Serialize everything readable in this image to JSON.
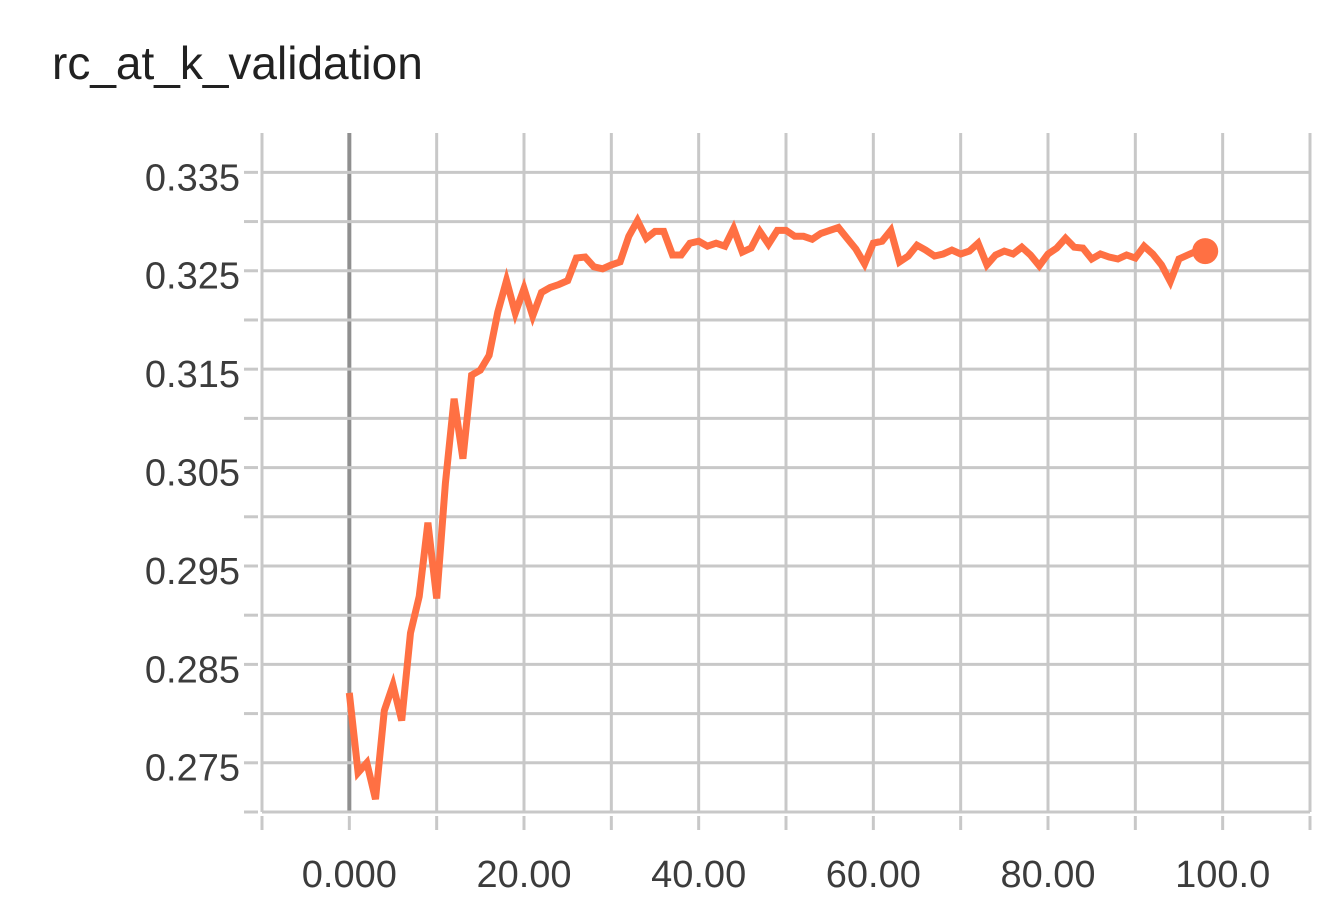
{
  "chart_data": {
    "type": "line",
    "title": "rc_at_k_validation",
    "xlabel": "",
    "ylabel": "",
    "xlim": [
      -10,
      110
    ],
    "ylim": [
      0.2705,
      0.3395
    ],
    "grid": true,
    "x_ticks": [
      0,
      20,
      40,
      60,
      80,
      100
    ],
    "x_tick_labels": [
      "0.000",
      "20.00",
      "40.00",
      "60.00",
      "80.00",
      "100.0"
    ],
    "y_ticks": [
      0.275,
      0.285,
      0.295,
      0.305,
      0.315,
      0.325,
      0.335
    ],
    "y_tick_labels": [
      "0.275",
      "0.285",
      "0.295",
      "0.305",
      "0.315",
      "0.325",
      "0.335"
    ],
    "colors": {
      "series": "#ff7043",
      "grid": "#c8c8c8",
      "axis": "#999999"
    },
    "series": [
      {
        "name": "",
        "x": [
          0,
          1,
          2,
          3,
          4,
          5,
          6,
          7,
          8,
          9,
          10,
          11,
          12,
          13,
          14,
          15,
          16,
          17,
          18,
          19,
          20,
          21,
          22,
          23,
          24,
          25,
          26,
          27,
          28,
          29,
          30,
          31,
          32,
          33,
          34,
          35,
          36,
          37,
          38,
          39,
          40,
          41,
          42,
          43,
          44,
          45,
          46,
          47,
          48,
          49,
          50,
          51,
          52,
          53,
          54,
          55,
          56,
          57,
          58,
          59,
          60,
          61,
          62,
          63,
          64,
          65,
          66,
          67,
          68,
          69,
          70,
          71,
          72,
          73,
          74,
          75,
          76,
          77,
          78,
          79,
          80,
          81,
          82,
          83,
          84,
          85,
          86,
          87,
          88,
          89,
          90,
          91,
          92,
          93,
          94,
          95,
          96,
          97,
          98
        ],
        "y": [
          0.2826,
          0.2745,
          0.2755,
          0.2718,
          0.2808,
          0.2834,
          0.2798,
          0.2887,
          0.2924,
          0.2999,
          0.2922,
          0.3039,
          0.3125,
          0.3064,
          0.3149,
          0.3154,
          0.3169,
          0.3213,
          0.3245,
          0.3212,
          0.3237,
          0.3209,
          0.3233,
          0.3238,
          0.3241,
          0.3245,
          0.3268,
          0.3269,
          0.3259,
          0.3257,
          0.3261,
          0.3264,
          0.329,
          0.3306,
          0.3288,
          0.3295,
          0.3295,
          0.3271,
          0.3271,
          0.3283,
          0.3285,
          0.328,
          0.3283,
          0.328,
          0.3298,
          0.3274,
          0.3278,
          0.3295,
          0.3282,
          0.3296,
          0.3296,
          0.329,
          0.329,
          0.3287,
          0.3293,
          0.3296,
          0.3299,
          0.3288,
          0.3277,
          0.3262,
          0.3283,
          0.3285,
          0.3296,
          0.3264,
          0.327,
          0.3281,
          0.3276,
          0.327,
          0.3272,
          0.3276,
          0.3272,
          0.3275,
          0.3283,
          0.3261,
          0.3271,
          0.3275,
          0.3272,
          0.3279,
          0.3271,
          0.326,
          0.3272,
          0.3278,
          0.3288,
          0.3279,
          0.3278,
          0.3267,
          0.3272,
          0.3269,
          0.3267,
          0.3271,
          0.3268,
          0.328,
          0.3272,
          0.3261,
          0.3244,
          0.3267,
          0.3271,
          0.3275,
          0.3275
        ]
      }
    ]
  }
}
